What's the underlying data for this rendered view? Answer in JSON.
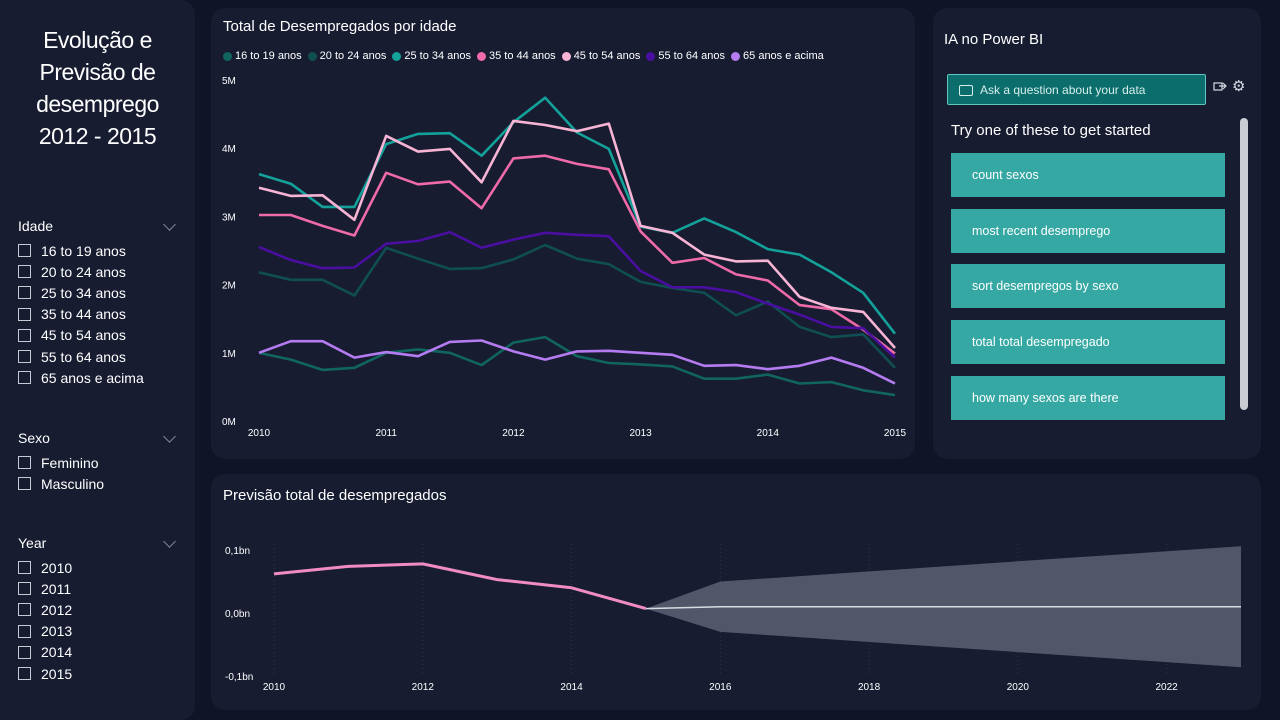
{
  "sidebar": {
    "title_lines": [
      "Evolução e",
      "Previsão de",
      "desemprego",
      "2012 - 2015"
    ],
    "slicers": {
      "idade": {
        "title": "Idade",
        "items": [
          "16 to 19 anos",
          "20 to 24 anos",
          "25 to 34 anos",
          "35 to 44 anos",
          "45 to 54 anos",
          "55 to 64 anos",
          "65 anos e acima"
        ]
      },
      "sexo": {
        "title": "Sexo",
        "items": [
          "Feminino",
          "Masculino"
        ]
      },
      "year": {
        "title": "Year",
        "items": [
          "2010",
          "2011",
          "2012",
          "2013",
          "2014",
          "2015"
        ]
      }
    }
  },
  "qna": {
    "title": "IA no Power BI",
    "input_placeholder": "Ask a question about your data",
    "subtitle": "Try one of these to get started",
    "suggestions": [
      "count sexos",
      "most recent desemprego",
      "sort desempregos by sexo",
      "total total desempregado",
      "how many sexos are there"
    ],
    "icons": [
      "chat-bubble-icon",
      "transform-icon",
      "gear-icon"
    ]
  },
  "chart_data": [
    {
      "type": "line",
      "title": "Total de Desempregados por idade",
      "x": [
        2010,
        2010.25,
        2010.5,
        2010.75,
        2011,
        2011.25,
        2011.5,
        2011.75,
        2012,
        2012.25,
        2012.5,
        2012.75,
        2013,
        2013.25,
        2013.5,
        2013.75,
        2014,
        2014.25,
        2014.5,
        2014.75,
        2015
      ],
      "xticks": [
        2010,
        2011,
        2012,
        2013,
        2014,
        2015
      ],
      "ylim": [
        0,
        5000000
      ],
      "yticks": [
        0,
        1000000,
        2000000,
        3000000,
        4000000,
        5000000
      ],
      "ytick_labels": [
        "0M",
        "1M",
        "2M",
        "3M",
        "4M",
        "5M"
      ],
      "legend_position": "top",
      "grid": false,
      "series": [
        {
          "name": "16 to 19 anos",
          "color": "#11655f",
          "values": [
            1000000,
            900000,
            750000,
            780000,
            1000000,
            1050000,
            1000000,
            820000,
            1150000,
            1230000,
            950000,
            850000,
            830000,
            800000,
            620000,
            620000,
            680000,
            550000,
            570000,
            450000,
            380000
          ]
        },
        {
          "name": "20 to 24 anos",
          "color": "#0f4e52",
          "values": [
            2180000,
            2070000,
            2070000,
            1840000,
            2540000,
            2380000,
            2230000,
            2240000,
            2370000,
            2580000,
            2380000,
            2300000,
            2040000,
            1950000,
            1880000,
            1550000,
            1750000,
            1380000,
            1230000,
            1270000,
            780000
          ]
        },
        {
          "name": "25 to 34 anos",
          "color": "#13a19a",
          "values": [
            3620000,
            3480000,
            3140000,
            3140000,
            4060000,
            4210000,
            4220000,
            3890000,
            4380000,
            4740000,
            4230000,
            3990000,
            2850000,
            2760000,
            2970000,
            2770000,
            2520000,
            2440000,
            2180000,
            1880000,
            1280000
          ]
        },
        {
          "name": "35 to 44 anos",
          "color": "#ee6aa8",
          "values": [
            3020000,
            3020000,
            2860000,
            2720000,
            3640000,
            3470000,
            3510000,
            3120000,
            3850000,
            3890000,
            3770000,
            3690000,
            2780000,
            2320000,
            2390000,
            2150000,
            2060000,
            1700000,
            1640000,
            1340000,
            990000
          ]
        },
        {
          "name": "45 to 54 anos",
          "color": "#f7b4d4",
          "values": [
            3420000,
            3300000,
            3310000,
            2950000,
            4180000,
            3950000,
            3990000,
            3500000,
            4400000,
            4340000,
            4250000,
            4360000,
            2860000,
            2760000,
            2440000,
            2340000,
            2350000,
            1820000,
            1660000,
            1600000,
            1070000
          ]
        },
        {
          "name": "55 to 64 anos",
          "color": "#4a0ea0",
          "values": [
            2550000,
            2360000,
            2240000,
            2250000,
            2600000,
            2640000,
            2770000,
            2540000,
            2660000,
            2760000,
            2730000,
            2710000,
            2200000,
            1960000,
            1960000,
            1890000,
            1720000,
            1560000,
            1380000,
            1360000,
            930000
          ]
        },
        {
          "name": "65 anos e acima",
          "color": "#b57cf2",
          "values": [
            1000000,
            1170000,
            1170000,
            930000,
            1010000,
            950000,
            1160000,
            1180000,
            1020000,
            900000,
            1020000,
            1030000,
            1000000,
            970000,
            810000,
            820000,
            760000,
            810000,
            930000,
            780000,
            550000
          ]
        }
      ]
    },
    {
      "type": "line",
      "title": "Previsão total de desempregados",
      "xlim": [
        2010,
        2023
      ],
      "xticks": [
        2010,
        2012,
        2014,
        2016,
        2018,
        2020,
        2022
      ],
      "ylim": [
        -0.1,
        0.1
      ],
      "yticks": [
        -0.1,
        0.0,
        0.1
      ],
      "ytick_labels": [
        "-0,1bn",
        "0,0bn",
        "0,1bn"
      ],
      "grid": true,
      "actual": {
        "color": "#f08cc2",
        "x": [
          2010,
          2011,
          2012,
          2013,
          2014,
          2015
        ],
        "values": [
          0.062,
          0.074,
          0.078,
          0.053,
          0.04,
          0.007
        ]
      },
      "forecast": {
        "line_color": "#d9dbe2",
        "band_color": "#5c6072",
        "x": [
          2015,
          2016,
          2017,
          2018,
          2019,
          2020,
          2021,
          2022,
          2023
        ],
        "values": [
          0.007,
          0.01,
          0.01,
          0.01,
          0.01,
          0.01,
          0.01,
          0.01,
          0.01
        ],
        "upper": [
          0.007,
          0.05,
          0.058,
          0.066,
          0.074,
          0.082,
          0.09,
          0.098,
          0.106
        ],
        "lower": [
          0.007,
          -0.03,
          -0.038,
          -0.046,
          -0.054,
          -0.062,
          -0.07,
          -0.078,
          -0.086
        ]
      }
    }
  ]
}
